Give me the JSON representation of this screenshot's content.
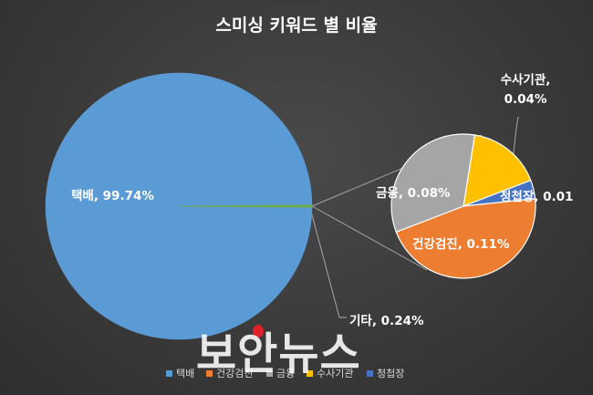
{
  "chart_data": {
    "type": "pie",
    "subtype": "pie-of-pie",
    "title": "스미싱 키워드 별 비율",
    "main_slices": [
      {
        "name": "택배",
        "value": 99.74,
        "label": "택배, 99.74%",
        "color": "#5b9bd5"
      },
      {
        "name": "기타",
        "value": 0.24,
        "label": "기타, 0.24%",
        "color": "#70ad47"
      }
    ],
    "secondary_slices": [
      {
        "name": "수사기관",
        "value": 0.04,
        "label": "수사기관,\n0.04%",
        "color": "#ffc000"
      },
      {
        "name": "청첩장",
        "value": 0.01,
        "label": "청첩장, 0.01",
        "color": "#4472c4"
      },
      {
        "name": "건강검진",
        "value": 0.11,
        "label": "건강검진, 0.11%",
        "color": "#ed7d31"
      },
      {
        "name": "금융",
        "value": 0.08,
        "label": "금융, 0.08%",
        "color": "#a5a5a5"
      }
    ],
    "legend": {
      "position": "bottom",
      "entries": [
        {
          "name": "택배",
          "color": "#5b9bd5"
        },
        {
          "name": "건강검진",
          "color": "#ed7d31"
        },
        {
          "name": "금융",
          "color": "#a5a5a5"
        },
        {
          "name": "수사기관",
          "color": "#ffc000"
        },
        {
          "name": "청첩장",
          "color": "#4472c4"
        }
      ]
    }
  },
  "watermark": "보안뉴스"
}
